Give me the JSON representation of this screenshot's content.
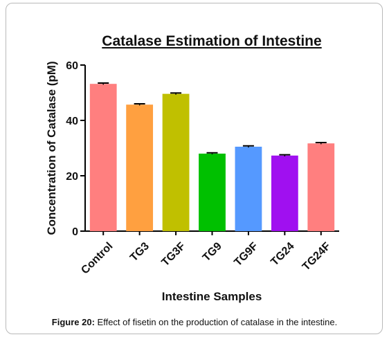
{
  "chart_data": {
    "type": "bar",
    "title": "Catalase Estimation of Intestine",
    "xlabel": "Intestine Samples",
    "ylabel": "Concentration of Catalase (pM)",
    "ylim": [
      0,
      60
    ],
    "yticks": [
      0,
      20,
      40,
      60
    ],
    "categories": [
      "Control",
      "TG3",
      "TG3F",
      "TG9",
      "TG9F",
      "TG24",
      "TG24F"
    ],
    "values": [
      53.2,
      45.7,
      49.6,
      28.0,
      30.5,
      27.3,
      31.7
    ],
    "error": [
      0.3,
      0.3,
      0.3,
      0.3,
      0.3,
      0.3,
      0.3
    ],
    "colors": [
      "#ff7f7f",
      "#ffa040",
      "#c0c000",
      "#00c000",
      "#5599ff",
      "#a010f0",
      "#ff7f7f"
    ],
    "grid": false,
    "legend": "none"
  },
  "caption": {
    "label": "Figure 20:",
    "text": " Effect of fisetin on the production of catalase in the intestine."
  }
}
